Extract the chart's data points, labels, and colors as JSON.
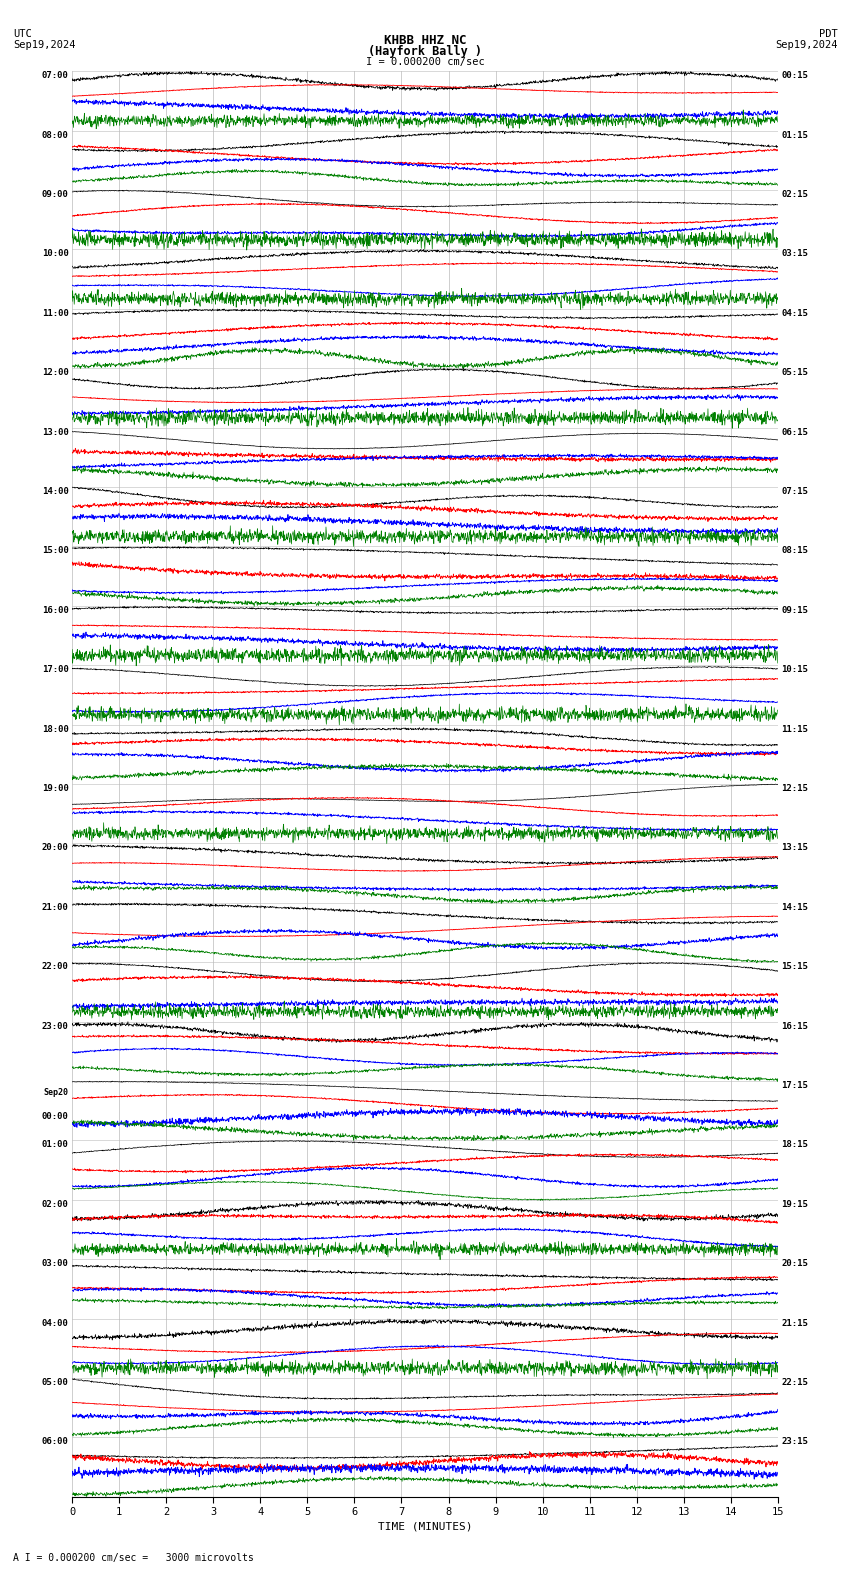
{
  "title_line1": "KHBB HHZ NC",
  "title_line2": "(Hayfork Bally )",
  "scale_label": "I = 0.000200 cm/sec",
  "bottom_label": "A I = 0.000200 cm/sec =   3000 microvolts",
  "utc_label": "UTC\nSep19,2024",
  "pdt_label": "PDT\nSep19,2024",
  "xlabel": "TIME (MINUTES)",
  "left_times": [
    "07:00",
    "08:00",
    "09:00",
    "10:00",
    "11:00",
    "12:00",
    "13:00",
    "14:00",
    "15:00",
    "16:00",
    "17:00",
    "18:00",
    "19:00",
    "20:00",
    "21:00",
    "22:00",
    "23:00",
    "Sep20\n00:00",
    "01:00",
    "02:00",
    "03:00",
    "04:00",
    "05:00",
    "06:00"
  ],
  "right_times": [
    "00:15",
    "01:15",
    "02:15",
    "03:15",
    "04:15",
    "05:15",
    "06:15",
    "07:15",
    "08:15",
    "09:15",
    "10:15",
    "11:15",
    "12:15",
    "13:15",
    "14:15",
    "15:15",
    "16:15",
    "17:15",
    "18:15",
    "19:15",
    "20:15",
    "21:15",
    "22:15",
    "23:15"
  ],
  "n_rows": 24,
  "n_traces_per_row": 4,
  "trace_colors": [
    "black",
    "red",
    "blue",
    "green"
  ],
  "background_color": "white",
  "grid_color": "#bbbbbb",
  "fig_width": 8.5,
  "fig_height": 15.84,
  "x_ticks": [
    0,
    1,
    2,
    3,
    4,
    5,
    6,
    7,
    8,
    9,
    10,
    11,
    12,
    13,
    14,
    15
  ],
  "x_lim": [
    0,
    15
  ],
  "seed": 12345
}
